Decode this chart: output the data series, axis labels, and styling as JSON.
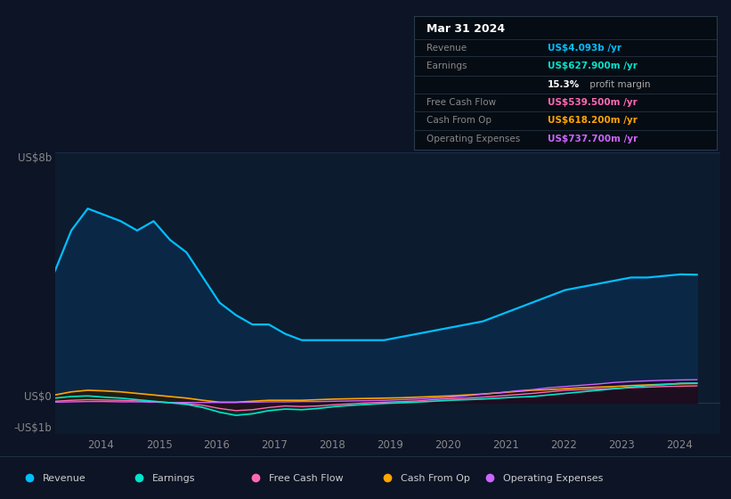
{
  "bg_color": "#0c1426",
  "plot_bg_color": "#0d1b2e",
  "title": "Mar 31 2024",
  "y_label_top": "US$8b",
  "y_label_zero": "US$0",
  "y_label_bottom": "-US$1b",
  "x_ticks": [
    2014,
    2015,
    2016,
    2017,
    2018,
    2019,
    2020,
    2021,
    2022,
    2023,
    2024
  ],
  "grid_color": "#1e3050",
  "line_colors": {
    "Revenue": "#00bfff",
    "Earnings": "#00e5cc",
    "Free Cash Flow": "#ff69b4",
    "Cash From Op": "#ffa500",
    "Operating Expenses": "#cc66ff"
  },
  "fill_colors": {
    "Revenue": "#0a2a4a",
    "Earnings": "#003322",
    "Free Cash Flow": "#2a0a1a",
    "Cash From Op": "#2a1a00",
    "Operating Expenses": "#1a0a2a"
  },
  "revenue": [
    4.2,
    5.5,
    6.2,
    6.0,
    5.8,
    5.5,
    5.8,
    5.2,
    4.8,
    4.0,
    3.2,
    2.8,
    2.5,
    2.5,
    2.2,
    2.0,
    2.0,
    2.0,
    2.0,
    2.0,
    2.0,
    2.1,
    2.2,
    2.3,
    2.4,
    2.5,
    2.6,
    2.8,
    3.0,
    3.2,
    3.4,
    3.6,
    3.7,
    3.8,
    3.9,
    4.0,
    4.0,
    4.05,
    4.1,
    4.09
  ],
  "earnings": [
    0.15,
    0.2,
    0.22,
    0.18,
    0.15,
    0.1,
    0.05,
    0.0,
    -0.05,
    -0.15,
    -0.3,
    -0.4,
    -0.35,
    -0.25,
    -0.2,
    -0.22,
    -0.18,
    -0.12,
    -0.08,
    -0.05,
    -0.02,
    0.0,
    0.02,
    0.05,
    0.08,
    0.1,
    0.12,
    0.15,
    0.18,
    0.2,
    0.25,
    0.3,
    0.35,
    0.4,
    0.45,
    0.5,
    0.55,
    0.58,
    0.62,
    0.628
  ],
  "free_cash_flow": [
    0.05,
    0.08,
    0.1,
    0.09,
    0.08,
    0.06,
    0.03,
    0.01,
    -0.02,
    -0.08,
    -0.18,
    -0.25,
    -0.22,
    -0.15,
    -0.1,
    -0.12,
    -0.1,
    -0.06,
    -0.03,
    0.0,
    0.02,
    0.04,
    0.06,
    0.1,
    0.13,
    0.15,
    0.18,
    0.22,
    0.26,
    0.3,
    0.35,
    0.4,
    0.42,
    0.44,
    0.46,
    0.48,
    0.5,
    0.52,
    0.53,
    0.54
  ],
  "cash_from_op": [
    0.25,
    0.35,
    0.4,
    0.38,
    0.35,
    0.3,
    0.25,
    0.2,
    0.15,
    0.08,
    0.02,
    0.02,
    0.05,
    0.08,
    0.08,
    0.08,
    0.1,
    0.12,
    0.13,
    0.14,
    0.15,
    0.16,
    0.18,
    0.2,
    0.22,
    0.25,
    0.28,
    0.32,
    0.36,
    0.4,
    0.42,
    0.45,
    0.48,
    0.5,
    0.52,
    0.55,
    0.57,
    0.59,
    0.61,
    0.618
  ],
  "op_expenses": [
    0.02,
    0.03,
    0.04,
    0.04,
    0.03,
    0.03,
    0.02,
    0.01,
    0.01,
    0.01,
    0.01,
    0.01,
    0.02,
    0.03,
    0.03,
    0.04,
    0.04,
    0.05,
    0.06,
    0.07,
    0.08,
    0.1,
    0.12,
    0.15,
    0.18,
    0.22,
    0.28,
    0.32,
    0.38,
    0.42,
    0.48,
    0.52,
    0.56,
    0.6,
    0.65,
    0.68,
    0.7,
    0.72,
    0.73,
    0.738
  ],
  "ylim": [
    -1.0,
    8.0
  ],
  "xlim": [
    2013.2,
    2024.7
  ],
  "legend_items": [
    {
      "label": "Revenue",
      "color": "#00bfff"
    },
    {
      "label": "Earnings",
      "color": "#00e5cc"
    },
    {
      "label": "Free Cash Flow",
      "color": "#ff69b4"
    },
    {
      "label": "Cash From Op",
      "color": "#ffa500"
    },
    {
      "label": "Operating Expenses",
      "color": "#cc66ff"
    }
  ]
}
